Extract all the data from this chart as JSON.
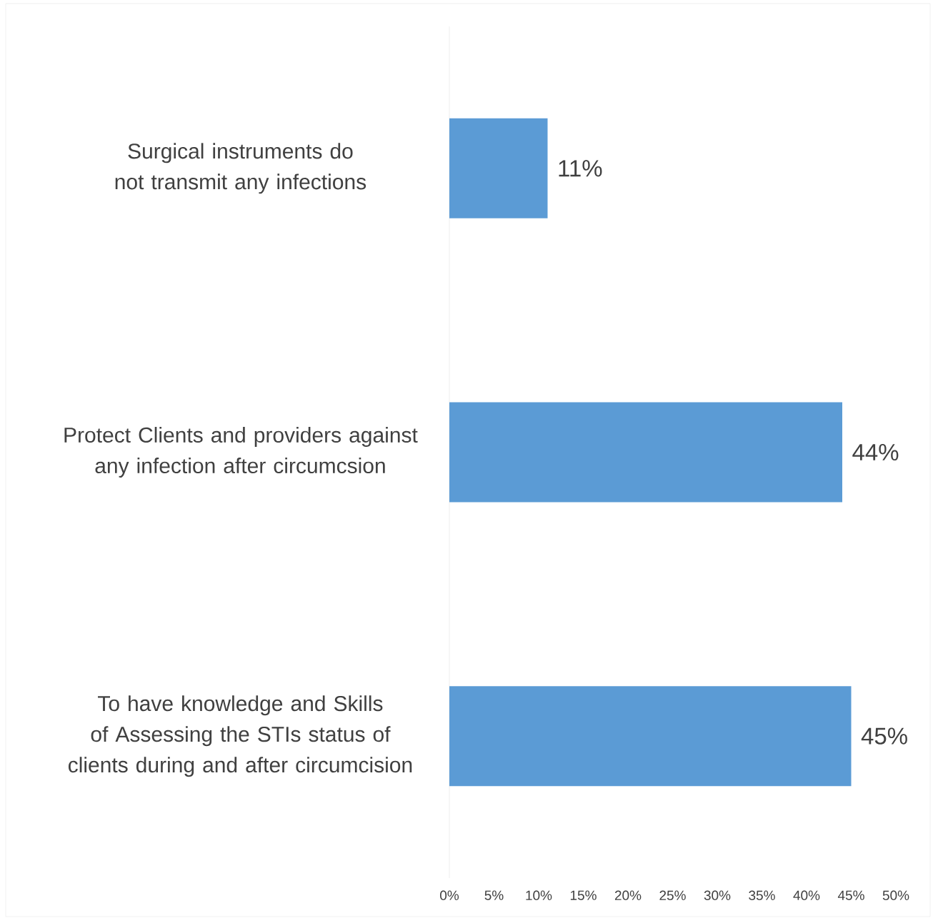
{
  "chart_data": {
    "type": "bar",
    "orientation": "horizontal",
    "categories": [
      "Surgical instruments do not transmit any infections",
      "Protect Clients and providers against any infection after circumcsion",
      "To have knowledge and Skills of Assessing the STIs status of clients during and after circumcision"
    ],
    "values": [
      11,
      44,
      45
    ],
    "color": "#5b9bd5",
    "value_labels": [
      "11%",
      "44%",
      "45%"
    ],
    "xlim": [
      0,
      50
    ],
    "xticks": [
      {
        "value": 0,
        "label": "0%"
      },
      {
        "value": 5,
        "label": "5%"
      },
      {
        "value": 10,
        "label": "10%"
      },
      {
        "value": 15,
        "label": "15%"
      },
      {
        "value": 20,
        "label": "20%"
      },
      {
        "value": 25,
        "label": "25%"
      },
      {
        "value": 30,
        "label": "30%"
      },
      {
        "value": 35,
        "label": "35%"
      },
      {
        "value": 40,
        "label": "40%"
      },
      {
        "value": 45,
        "label": "45%"
      },
      {
        "value": 50,
        "label": "50%"
      }
    ],
    "grid": false
  }
}
